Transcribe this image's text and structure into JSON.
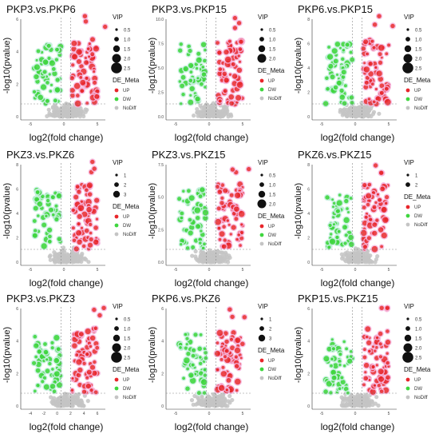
{
  "figure": {
    "axis_labels": {
      "x": "log2(fold change)",
      "y": "-log10(pvalue)"
    },
    "legend_titles": {
      "vip": "VIP",
      "group": "DE_Meta"
    },
    "legend_groups": [
      "UP",
      "DW",
      "NoDiff"
    ],
    "colors": {
      "up": "#e8262b",
      "down": "#3fd63f",
      "nodiff": "#c4c4c4",
      "up_halo": "#f6b6df",
      "down_halo": "#c8f0e2",
      "axis": "#333333",
      "threshold_line": "#888888"
    }
  },
  "chart_data": [
    {
      "type": "scatter",
      "title": "PKP3.vs.PKP6",
      "x_ticks": [
        "-5",
        "0",
        "5"
      ],
      "y_ticks": [
        "0",
        "2",
        "4",
        "6"
      ],
      "vip_sizes": [
        "0.5",
        "1.0",
        "1.5",
        "2.0",
        "2.5"
      ]
    },
    {
      "type": "scatter",
      "title": "PKP3.vs.PKP15",
      "x_ticks": [
        "-5",
        "0",
        "5"
      ],
      "y_ticks": [
        "0.0",
        "2.5",
        "5.0",
        "7.5",
        "10.0"
      ],
      "vip_sizes": [
        "0.5",
        "1.0",
        "1.5",
        "2.0"
      ]
    },
    {
      "type": "scatter",
      "title": "PKP6.vs.PKP15",
      "x_ticks": [
        "-5",
        "0",
        "5"
      ],
      "y_ticks": [
        "0",
        "2",
        "4",
        "6",
        "8"
      ],
      "vip_sizes": [
        "0.5",
        "1.0",
        "1.5",
        "2.0",
        "2.5"
      ]
    },
    {
      "type": "scatter",
      "title": "PKZ3.vs.PKZ6",
      "x_ticks": [
        "-5",
        "0",
        "5"
      ],
      "y_ticks": [
        "0",
        "2",
        "4",
        "6",
        "8"
      ],
      "vip_sizes": [
        "1",
        "2",
        "3"
      ]
    },
    {
      "type": "scatter",
      "title": "PKZ3.vs.PKZ15",
      "x_ticks": [
        "-5",
        "0",
        "5"
      ],
      "y_ticks": [
        "0.0",
        "2.5",
        "5.0",
        "7.5"
      ],
      "vip_sizes": [
        "0.5",
        "1.0",
        "1.5",
        "2.0"
      ]
    },
    {
      "type": "scatter",
      "title": "PKZ6.vs.PKZ15",
      "x_ticks": [
        "-5",
        "0",
        "5"
      ],
      "y_ticks": [
        "0",
        "2",
        "4",
        "6",
        "8"
      ],
      "vip_sizes": [
        "1",
        "2"
      ]
    },
    {
      "type": "scatter",
      "title": "PKP3.vs.PKZ3",
      "x_ticks": [
        "-4",
        "-2",
        "0",
        "2",
        "4",
        "6"
      ],
      "y_ticks": [
        "0",
        "2",
        "4",
        "6"
      ],
      "vip_sizes": [
        "0.5",
        "1.0",
        "1.5",
        "2.0",
        "2.5"
      ]
    },
    {
      "type": "scatter",
      "title": "PKP6.vs.PKZ6",
      "x_ticks": [
        "-5",
        "0",
        "5"
      ],
      "y_ticks": [
        "0",
        "2",
        "4",
        "6"
      ],
      "vip_sizes": [
        "1",
        "2",
        "3"
      ]
    },
    {
      "type": "scatter",
      "title": "PKP15.vs.PKZ15",
      "x_ticks": [
        "-5",
        "0",
        "5"
      ],
      "y_ticks": [
        "0",
        "2",
        "4",
        "6"
      ],
      "vip_sizes": [
        "0.5",
        "1.0",
        "1.5",
        "2.0",
        "2.5"
      ]
    }
  ]
}
